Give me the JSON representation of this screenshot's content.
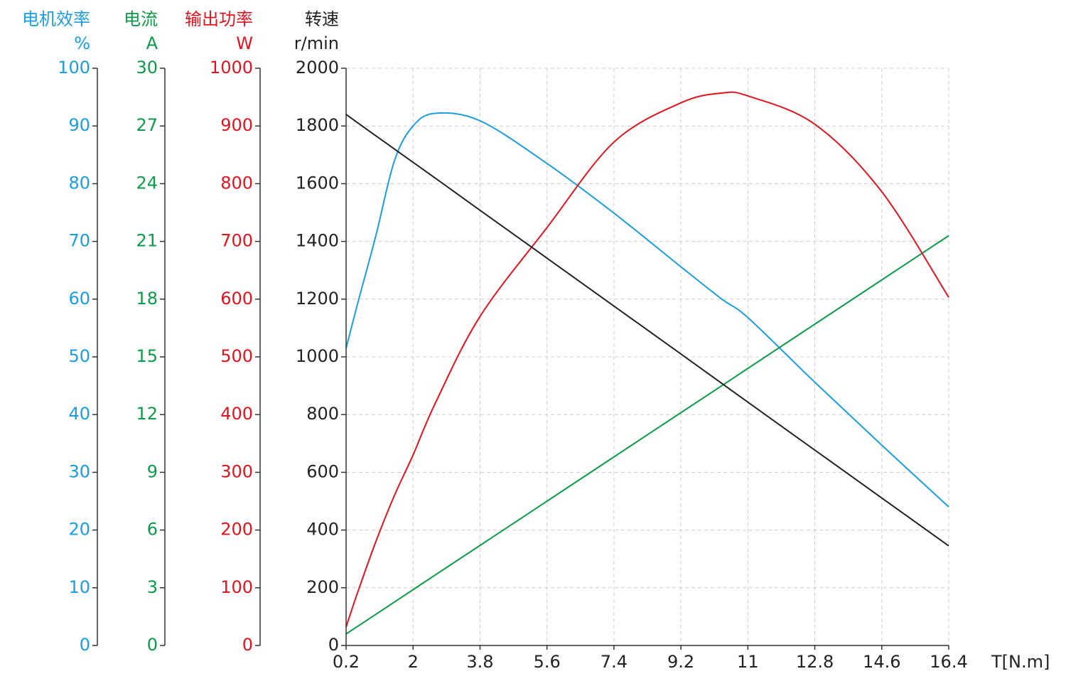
{
  "chart_data": {
    "type": "line",
    "xlabel": "T[N.m]",
    "x": [
      0.2,
      0.5,
      1,
      1.5,
      2,
      2.6,
      3.8,
      5.6,
      7.4,
      9.2,
      10.3,
      11,
      12.8,
      14.6,
      16.4
    ],
    "xlim": [
      0.2,
      16.4
    ],
    "xticks": [
      0.2,
      2,
      3.8,
      5.6,
      7.4,
      9.2,
      11,
      12.8,
      14.6,
      16.4
    ],
    "grid": true,
    "axes": [
      {
        "title": "电机效率",
        "unit": "%",
        "color": "#1a9ee0",
        "ylim": [
          0,
          100
        ],
        "yticks": [
          0,
          10,
          20,
          30,
          40,
          50,
          60,
          70,
          80,
          90,
          100
        ],
        "values": [
          51.5,
          59,
          71,
          84,
          90,
          92.2,
          90.9,
          83.5,
          74.9,
          65.6,
          60,
          56.8,
          45.6,
          34.7,
          24
        ]
      },
      {
        "title": "电流",
        "unit": "A",
        "color": "#0d9a48",
        "ylim": [
          0,
          30
        ],
        "yticks": [
          0,
          3,
          6,
          9,
          12,
          15,
          18,
          21,
          24,
          27,
          30
        ],
        "values": [
          0.6,
          0.98,
          1.62,
          2.26,
          2.9,
          3.67,
          5.2,
          7.5,
          9.8,
          12.1,
          13.5,
          14.4,
          16.7,
          19.0,
          21.3
        ]
      },
      {
        "title": "输出功率",
        "unit": "W",
        "color": "#e0141e",
        "ylim": [
          0,
          1000
        ],
        "yticks": [
          0,
          100,
          200,
          300,
          400,
          500,
          600,
          700,
          800,
          900,
          1000
        ],
        "values": [
          32,
          90,
          180,
          260,
          330,
          420,
          570,
          724,
          872,
          940,
          957,
          952,
          903,
          786,
          603
        ]
      },
      {
        "title": "转速",
        "unit": "r/min",
        "color": "#222222",
        "ylim": [
          0,
          2000
        ],
        "yticks": [
          0,
          200,
          400,
          600,
          800,
          1000,
          1200,
          1400,
          1600,
          1800,
          2000
        ],
        "values": [
          1840,
          1812,
          1766,
          1720,
          1674,
          1619,
          1508,
          1342,
          1176,
          1010,
          908,
          843,
          677,
          511,
          345
        ]
      }
    ]
  }
}
